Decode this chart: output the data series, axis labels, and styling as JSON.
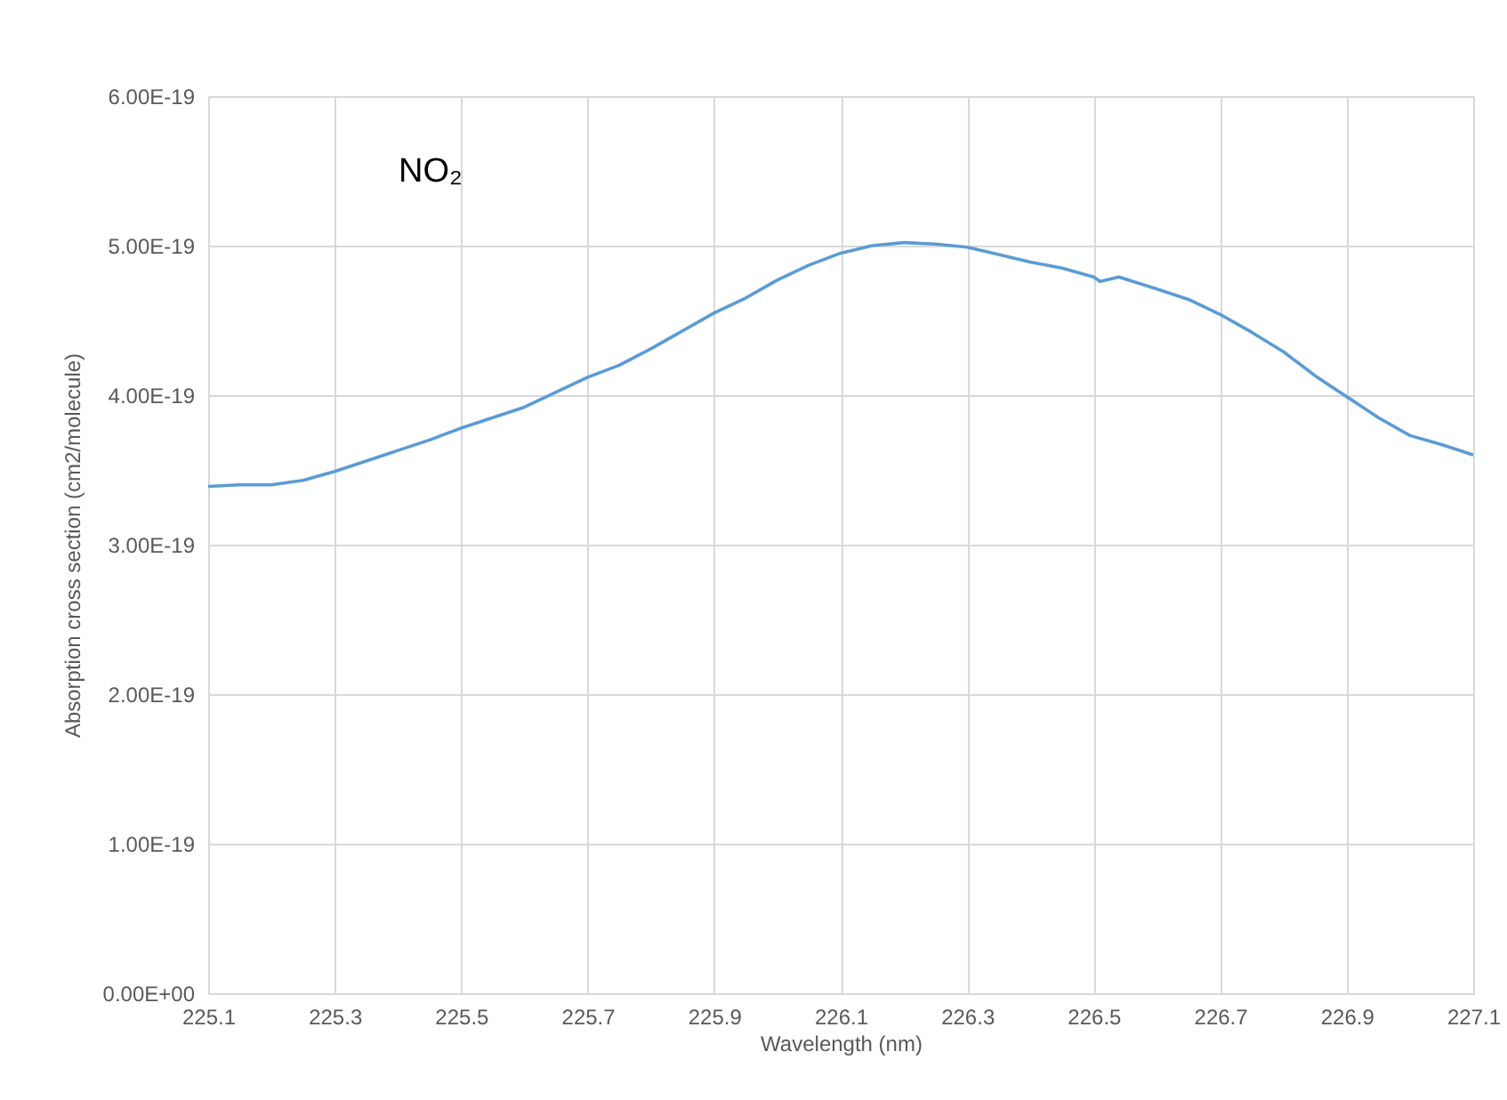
{
  "chart_data": {
    "type": "line",
    "xlabel": "Wavelength (nm)",
    "ylabel": "Absorption cross section (cm2/molecule)",
    "annotations": [
      "NO₂"
    ],
    "x": [
      225.1,
      225.15,
      225.2,
      225.25,
      225.3,
      225.35,
      225.4,
      225.45,
      225.5,
      225.55,
      225.6,
      225.65,
      225.7,
      225.75,
      225.8,
      225.85,
      225.9,
      225.95,
      226.0,
      226.05,
      226.1,
      226.15,
      226.2,
      226.25,
      226.3,
      226.35,
      226.4,
      226.45,
      226.5,
      226.51,
      226.54,
      226.6,
      226.65,
      226.7,
      226.75,
      226.8,
      226.85,
      226.9,
      226.95,
      227.0,
      227.05,
      227.1
    ],
    "series": [
      {
        "color": "#5b9bd5",
        "values": [
          3.39e-19,
          3.4e-19,
          3.4e-19,
          3.43e-19,
          3.49e-19,
          3.56e-19,
          3.63e-19,
          3.7e-19,
          3.78e-19,
          3.85e-19,
          3.92e-19,
          4.02e-19,
          4.12e-19,
          4.2e-19,
          4.31e-19,
          4.43e-19,
          4.55e-19,
          4.65e-19,
          4.77e-19,
          4.87e-19,
          4.95e-19,
          5e-19,
          5.02e-19,
          5.01e-19,
          4.99e-19,
          4.94e-19,
          4.89e-19,
          4.85e-19,
          4.79e-19,
          4.76e-19,
          4.79e-19,
          4.71e-19,
          4.64e-19,
          4.54e-19,
          4.42e-19,
          4.29e-19,
          4.13e-19,
          3.99e-19,
          3.85e-19,
          3.73e-19,
          3.67e-19,
          3.6e-19
        ]
      }
    ],
    "xlim": [
      225.1,
      227.1
    ],
    "xticks": [
      225.1,
      225.3,
      225.5,
      225.7,
      225.9,
      226.1,
      226.3,
      226.5,
      226.7,
      226.9,
      227.1
    ],
    "ylim": [
      0,
      6e-19
    ],
    "yticks": [
      {
        "value": 0,
        "label": "0.00E+00"
      },
      {
        "value": 1e-19,
        "label": "1.00E-19"
      },
      {
        "value": 2e-19,
        "label": "2.00E-19"
      },
      {
        "value": 3e-19,
        "label": "3.00E-19"
      },
      {
        "value": 4e-19,
        "label": "4.00E-19"
      },
      {
        "value": 5e-19,
        "label": "5.00E-19"
      },
      {
        "value": 6e-19,
        "label": "6.00E-19"
      }
    ],
    "grid": true,
    "marker": "none",
    "line_style": "solid"
  }
}
